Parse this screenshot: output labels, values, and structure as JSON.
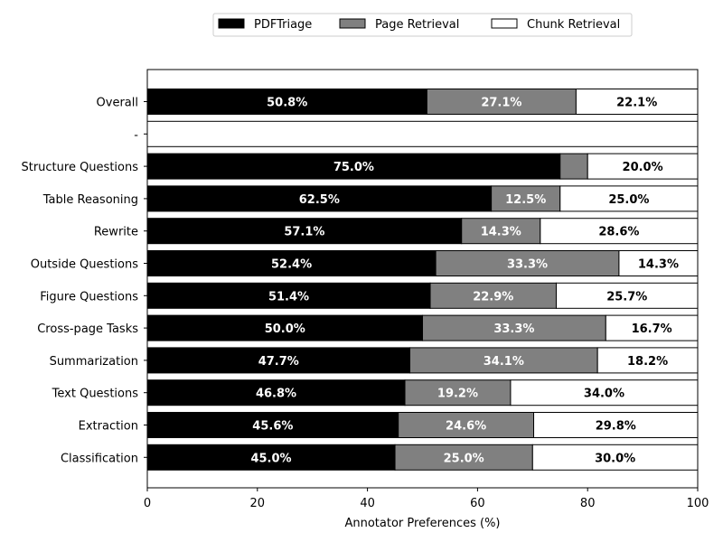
{
  "chart_data": {
    "type": "bar",
    "orientation": "horizontal",
    "stacked": true,
    "xlabel": "Annotator Preferences (%)",
    "xlim": [
      0,
      100
    ],
    "x_ticks": [
      0,
      20,
      40,
      60,
      80,
      100
    ],
    "grid": false,
    "legend_placement": "top-center",
    "categories": [
      "Overall",
      "-",
      "Structure Questions",
      "Table Reasoning",
      "Rewrite",
      "Outside Questions",
      "Figure Questions",
      "Cross-page Tasks",
      "Summarization",
      "Text Questions",
      "Extraction",
      "Classification"
    ],
    "series": [
      {
        "name": "PDFTriage",
        "color": "#000000",
        "label_color": "#ffffff",
        "values": [
          50.8,
          0,
          75.0,
          62.5,
          57.1,
          52.4,
          51.4,
          50.0,
          47.7,
          46.8,
          45.6,
          45.0
        ],
        "labels": [
          "50.8%",
          "",
          "75.0%",
          "62.5%",
          "57.1%",
          "52.4%",
          "51.4%",
          "50.0%",
          "47.7%",
          "46.8%",
          "45.6%",
          "45.0%"
        ]
      },
      {
        "name": "Page Retrieval",
        "color": "#808080",
        "label_color": "#ffffff",
        "values": [
          27.1,
          0,
          5.0,
          12.5,
          14.3,
          33.3,
          22.9,
          33.3,
          34.1,
          19.2,
          24.6,
          25.0
        ],
        "labels": [
          "27.1%",
          "",
          "",
          "12.5%",
          "14.3%",
          "33.3%",
          "22.9%",
          "33.3%",
          "34.1%",
          "19.2%",
          "24.6%",
          "25.0%"
        ]
      },
      {
        "name": "Chunk Retrieval",
        "color": "#ffffff",
        "label_color": "#000000",
        "values": [
          22.1,
          100,
          20.0,
          25.0,
          28.6,
          14.3,
          25.7,
          16.7,
          18.2,
          34.0,
          29.8,
          30.0
        ],
        "labels": [
          "22.1%",
          "",
          "20.0%",
          "25.0%",
          "28.6%",
          "14.3%",
          "25.7%",
          "16.7%",
          "18.2%",
          "34.0%",
          "29.8%",
          "30.0%"
        ]
      }
    ]
  }
}
